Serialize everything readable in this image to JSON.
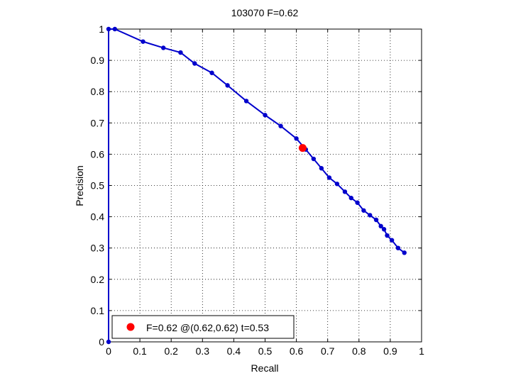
{
  "chart_data": {
    "type": "line",
    "title": "103070 F=0.62",
    "xlabel": "Recall",
    "ylabel": "Precision",
    "xlim": [
      0,
      1
    ],
    "ylim": [
      0,
      1
    ],
    "grid": true,
    "xticks": [
      "0",
      "0.1",
      "0.2",
      "0.3",
      "0.4",
      "0.5",
      "0.6",
      "0.7",
      "0.8",
      "0.9",
      "1"
    ],
    "yticks": [
      "0",
      "0.1",
      "0.2",
      "0.3",
      "0.4",
      "0.5",
      "0.6",
      "0.7",
      "0.8",
      "0.9",
      "1"
    ],
    "series": [
      {
        "color": "#0000cc",
        "x": [
          0,
          0,
          0.02,
          0.11,
          0.175,
          0.23,
          0.275,
          0.33,
          0.38,
          0.44,
          0.5,
          0.55,
          0.6,
          0.63,
          0.655,
          0.68,
          0.705,
          0.73,
          0.755,
          0.775,
          0.795,
          0.815,
          0.835,
          0.855,
          0.87,
          0.88,
          0.89,
          0.905,
          0.925,
          0.945
        ],
        "y": [
          0,
          1.0,
          1.0,
          0.96,
          0.94,
          0.925,
          0.89,
          0.86,
          0.82,
          0.77,
          0.725,
          0.69,
          0.65,
          0.615,
          0.585,
          0.555,
          0.525,
          0.505,
          0.48,
          0.46,
          0.445,
          0.42,
          0.405,
          0.39,
          0.37,
          0.36,
          0.34,
          0.325,
          0.3,
          0.285
        ]
      }
    ],
    "highlight": {
      "x": 0.62,
      "y": 0.62,
      "color": "#ff0000"
    },
    "legend": {
      "placement": "bottom-left",
      "label": "F=0.62 @(0.62,0.62) t=0.53"
    }
  }
}
